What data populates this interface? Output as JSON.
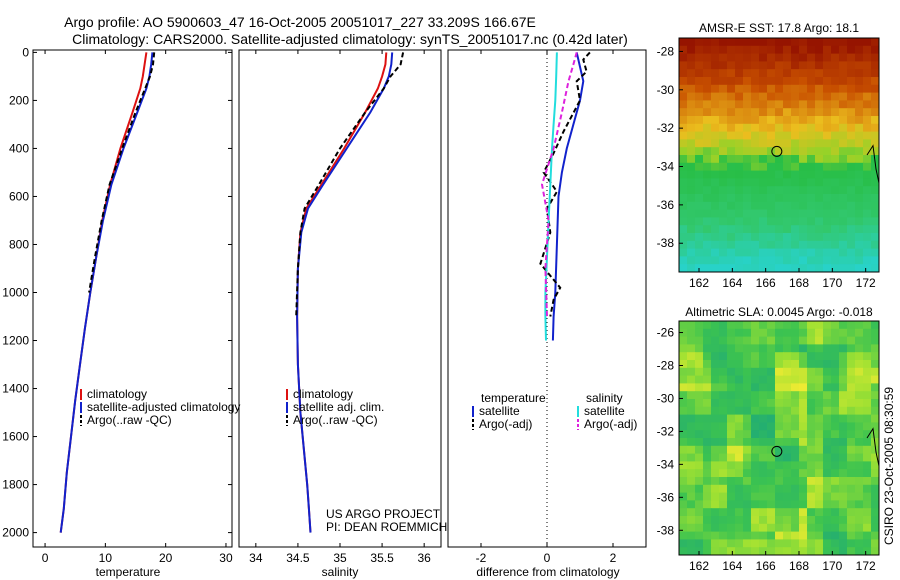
{
  "header": {
    "line1": "Argo profile: AO 5900603_47 16-Oct-2005 20051017_227 33.209S 166.67E",
    "line2": "Climatology: CARS2000. Satellite-adjusted climatology: synTS_20051017.nc (0.42d later)"
  },
  "footer": {
    "project": "US ARGO PROJECT",
    "pi": "PI: DEAN ROEMMICH",
    "credit": "CSIRO 23-Oct-2005 08:30:59"
  },
  "colors": {
    "clim": "#dd1111",
    "sat": "#1122cc",
    "argo": "#000000",
    "sal_sat": "#22dddd",
    "sal_argo": "#dd22dd"
  },
  "chart_data": [
    {
      "id": "temp",
      "type": "line",
      "xlabel": "temperature",
      "ylabel": "",
      "xlim": [
        -2,
        31
      ],
      "ylim": [
        2060,
        -10
      ],
      "xticks": [
        0,
        10,
        20,
        30
      ],
      "yticks": [
        0,
        200,
        400,
        600,
        800,
        1000,
        1200,
        1400,
        1600,
        1800,
        2000
      ],
      "legend": [
        {
          "label": "climatology",
          "key": "clim"
        },
        {
          "label": "satellite-adjusted climatology",
          "key": "sat"
        },
        {
          "label": "Argo(..raw -QC)",
          "key": "argo"
        }
      ],
      "series": [
        {
          "name": "climatology",
          "key": "clim",
          "dash": "",
          "x": [
            16.8,
            16.5,
            16.2,
            15.8,
            14.5,
            12.5,
            10.8,
            9.5,
            8.5,
            7.5,
            6.6,
            5.8,
            5.0,
            4.3,
            3.6,
            3.1,
            2.6
          ],
          "y": [
            0,
            50,
            100,
            150,
            250,
            400,
            550,
            700,
            850,
            1000,
            1150,
            1300,
            1450,
            1600,
            1750,
            1900,
            2000
          ]
        },
        {
          "name": "satellite",
          "key": "sat",
          "dash": "",
          "x": [
            17.8,
            17.6,
            17.3,
            16.8,
            15.3,
            13.0,
            11.0,
            9.6,
            8.5,
            7.5,
            6.6,
            5.8,
            5.0,
            4.3,
            3.6,
            3.1,
            2.6
          ],
          "y": [
            0,
            50,
            100,
            150,
            250,
            400,
            550,
            700,
            850,
            1000,
            1150,
            1300,
            1450,
            1600,
            1750,
            1900,
            2000
          ]
        },
        {
          "name": "Argo",
          "key": "argo",
          "dash": "5,3",
          "x": [
            18.1,
            17.9,
            17.4,
            16.6,
            15.0,
            12.8,
            10.7,
            9.4,
            8.3,
            7.3
          ],
          "y": [
            0,
            50,
            100,
            150,
            250,
            400,
            550,
            700,
            850,
            1000
          ]
        }
      ]
    },
    {
      "id": "sal",
      "type": "line",
      "xlabel": "salinity",
      "ylabel": "",
      "xlim": [
        33.8,
        36.2
      ],
      "ylim": [
        2060,
        -10
      ],
      "xticks": [
        34,
        34.5,
        35,
        35.5,
        36
      ],
      "yticks": [],
      "legend": [
        {
          "label": "climatology",
          "key": "clim"
        },
        {
          "label": "satellite adj. clim.",
          "key": "sat"
        },
        {
          "label": "Argo(..raw -QC)",
          "key": "argo"
        }
      ],
      "series": [
        {
          "name": "climatology",
          "key": "clim",
          "dash": "",
          "x": [
            35.55,
            35.54,
            35.5,
            35.45,
            35.3,
            35.05,
            34.78,
            34.6,
            34.53,
            34.5,
            34.49,
            34.5,
            34.53,
            34.57,
            34.61,
            34.63,
            34.65
          ],
          "y": [
            0,
            50,
            100,
            150,
            250,
            400,
            550,
            650,
            750,
            900,
            1100,
            1300,
            1500,
            1650,
            1800,
            1900,
            2000
          ]
        },
        {
          "name": "satellite",
          "key": "sat",
          "dash": "",
          "x": [
            35.62,
            35.61,
            35.58,
            35.52,
            35.36,
            35.08,
            34.8,
            34.62,
            34.54,
            34.5,
            34.49,
            34.5,
            34.53,
            34.57,
            34.61,
            34.63,
            34.65
          ],
          "y": [
            0,
            50,
            100,
            150,
            250,
            400,
            550,
            650,
            750,
            900,
            1100,
            1300,
            1500,
            1650,
            1800,
            1900,
            2000
          ]
        },
        {
          "name": "Argo",
          "key": "argo",
          "dash": "5,3",
          "x": [
            35.75,
            35.72,
            35.6,
            35.52,
            35.3,
            35.0,
            34.75,
            34.58,
            34.53,
            34.5,
            34.48
          ],
          "y": [
            0,
            50,
            100,
            150,
            250,
            400,
            550,
            650,
            750,
            900,
            1100
          ]
        }
      ]
    },
    {
      "id": "diff",
      "type": "line",
      "xlabel": "difference from climatology",
      "ylabel": "",
      "xlim": [
        -3,
        3
      ],
      "ylim": [
        2060,
        -10
      ],
      "xticks": [
        -2,
        0,
        2
      ],
      "yticks": [],
      "legend_headers": [
        "temperature",
        "salinity"
      ],
      "legend": [
        {
          "label": "satellite",
          "key": "sat",
          "col": 0
        },
        {
          "label": "Argo(-adj)",
          "key": "argo",
          "col": 0
        },
        {
          "label": "satellite",
          "key": "sal_sat",
          "col": 1
        },
        {
          "label": "Argo(-adj)",
          "key": "sal_argo",
          "col": 1
        }
      ],
      "series": [
        {
          "name": "temp satellite",
          "key": "sat",
          "dash": "",
          "x": [
            0.9,
            1.0,
            1.1,
            1.0,
            0.8,
            0.6,
            0.45,
            0.35,
            0.3,
            0.25,
            0.2,
            0.18
          ],
          "y": [
            0,
            60,
            120,
            200,
            300,
            400,
            500,
            600,
            800,
            1000,
            1100,
            1200
          ]
        },
        {
          "name": "temp Argo",
          "key": "argo",
          "dash": "5,3",
          "x": [
            1.3,
            1.1,
            1.2,
            0.9,
            1.0,
            0.5,
            0.2,
            -0.1,
            0.3,
            0.0,
            0.1,
            -0.2,
            0.4,
            0.2,
            0.1
          ],
          "y": [
            0,
            30,
            80,
            120,
            200,
            330,
            420,
            500,
            580,
            650,
            750,
            880,
            980,
            1030,
            1100
          ]
        },
        {
          "name": "sal satellite",
          "key": "sal_sat",
          "dash": "",
          "x": [
            0.3,
            0.28,
            0.25,
            0.2,
            0.15,
            0.1,
            0.05,
            0.0,
            -0.05,
            -0.05,
            -0.03
          ],
          "y": [
            0,
            100,
            200,
            300,
            400,
            550,
            700,
            850,
            1000,
            1100,
            1200
          ]
        },
        {
          "name": "sal Argo",
          "key": "sal_argo",
          "dash": "5,3",
          "x": [
            0.9,
            0.8,
            0.65,
            0.45,
            0.2,
            -0.15,
            0.05,
            -0.05,
            0.0
          ],
          "y": [
            0,
            50,
            120,
            250,
            400,
            550,
            700,
            900,
            1100
          ]
        }
      ]
    }
  ],
  "maps": [
    {
      "id": "sst",
      "title": "AMSR-E SST: 17.8 Argo: 18.1",
      "xlim": [
        160.8,
        172.8
      ],
      "ylim": [
        -39.5,
        -27.3
      ],
      "xticks": [
        162,
        164,
        166,
        168,
        170,
        172
      ],
      "yticks": [
        -28,
        -30,
        -32,
        -34,
        -36,
        -38
      ],
      "marker": {
        "lon": 166.67,
        "lat": -33.21
      }
    },
    {
      "id": "sla",
      "title": "Altimetric SLA: 0.0045 Argo: -0.018",
      "xlim": [
        160.8,
        172.8
      ],
      "ylim": [
        -39.5,
        -25.3
      ],
      "xticks": [
        162,
        164,
        166,
        168,
        170,
        172
      ],
      "yticks": [
        -26,
        -28,
        -30,
        -32,
        -34,
        -36,
        -38
      ],
      "marker": {
        "lon": 166.67,
        "lat": -33.21
      }
    }
  ]
}
